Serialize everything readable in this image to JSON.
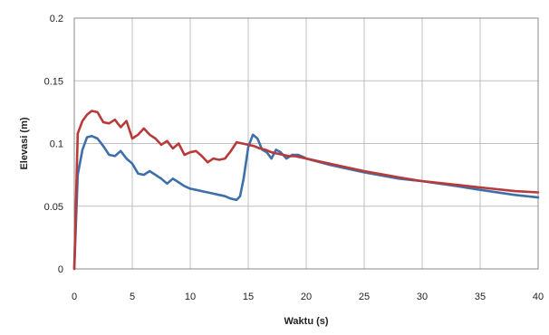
{
  "chart_data": {
    "type": "line",
    "title": "",
    "xlabel": "Waktu (s)",
    "ylabel": "Elevasi (m)",
    "xlim": [
      0,
      40
    ],
    "ylim": [
      0,
      0.2
    ],
    "xticks": [
      0,
      5,
      10,
      15,
      20,
      25,
      30,
      35,
      40
    ],
    "yticks": [
      0,
      0.05,
      0.1,
      0.15,
      0.2
    ],
    "xtick_labels": [
      "0",
      "5",
      "10",
      "15",
      "20",
      "25",
      "30",
      "35",
      "40"
    ],
    "ytick_labels": [
      "0",
      "0.05",
      "0.1",
      "0.15",
      "0.2"
    ],
    "grid": true,
    "legend": "none",
    "colors": {
      "series_blue": "#3f6fa8",
      "series_red": "#b83a3a",
      "grid": "#bfbfbf",
      "plot_border": "#888888"
    },
    "series": [
      {
        "color": "#3f6fa8",
        "x": [
          0,
          0.3,
          0.7,
          1.1,
          1.5,
          2.0,
          2.5,
          3.0,
          3.5,
          4.0,
          4.5,
          5.0,
          5.5,
          6.0,
          6.5,
          7.0,
          7.5,
          8.0,
          8.5,
          9.0,
          9.5,
          10.0,
          10.5,
          11.0,
          11.5,
          12.0,
          12.5,
          13.0,
          13.5,
          14.0,
          14.3,
          14.6,
          15.0,
          15.4,
          15.8,
          16.2,
          16.6,
          17.0,
          17.4,
          17.8,
          18.3,
          18.8,
          19.3,
          19.8,
          20.0,
          22.0,
          25.0,
          28.0,
          30.0,
          33.0,
          35.0,
          38.0,
          40.0
        ],
        "y": [
          0.0,
          0.075,
          0.095,
          0.105,
          0.106,
          0.104,
          0.098,
          0.091,
          0.09,
          0.094,
          0.088,
          0.084,
          0.076,
          0.075,
          0.078,
          0.075,
          0.072,
          0.068,
          0.072,
          0.069,
          0.066,
          0.064,
          0.063,
          0.062,
          0.061,
          0.06,
          0.059,
          0.058,
          0.056,
          0.055,
          0.058,
          0.072,
          0.097,
          0.107,
          0.104,
          0.095,
          0.093,
          0.088,
          0.095,
          0.093,
          0.088,
          0.091,
          0.091,
          0.089,
          0.088,
          0.083,
          0.077,
          0.072,
          0.07,
          0.066,
          0.063,
          0.059,
          0.057
        ]
      },
      {
        "color": "#b83a3a",
        "x": [
          0,
          0.3,
          0.7,
          1.1,
          1.5,
          2.0,
          2.5,
          3.0,
          3.5,
          4.0,
          4.5,
          5.0,
          5.5,
          6.0,
          6.5,
          7.0,
          7.5,
          8.0,
          8.5,
          9.0,
          9.5,
          10.0,
          10.5,
          11.0,
          11.5,
          12.0,
          12.5,
          13.0,
          13.5,
          14.0,
          14.5,
          15.0,
          15.5,
          16.0,
          16.5,
          17.0,
          17.5,
          18.0,
          18.5,
          19.0,
          19.5,
          20.0,
          22.0,
          25.0,
          28.0,
          30.0,
          33.0,
          35.0,
          38.0,
          40.0
        ],
        "y": [
          0.0,
          0.108,
          0.118,
          0.123,
          0.126,
          0.125,
          0.117,
          0.116,
          0.119,
          0.113,
          0.118,
          0.104,
          0.107,
          0.112,
          0.107,
          0.104,
          0.099,
          0.102,
          0.096,
          0.1,
          0.091,
          0.093,
          0.094,
          0.09,
          0.085,
          0.088,
          0.087,
          0.088,
          0.094,
          0.101,
          0.1,
          0.099,
          0.098,
          0.096,
          0.095,
          0.093,
          0.092,
          0.091,
          0.09,
          0.09,
          0.089,
          0.088,
          0.084,
          0.078,
          0.073,
          0.07,
          0.067,
          0.065,
          0.062,
          0.061
        ]
      }
    ]
  }
}
